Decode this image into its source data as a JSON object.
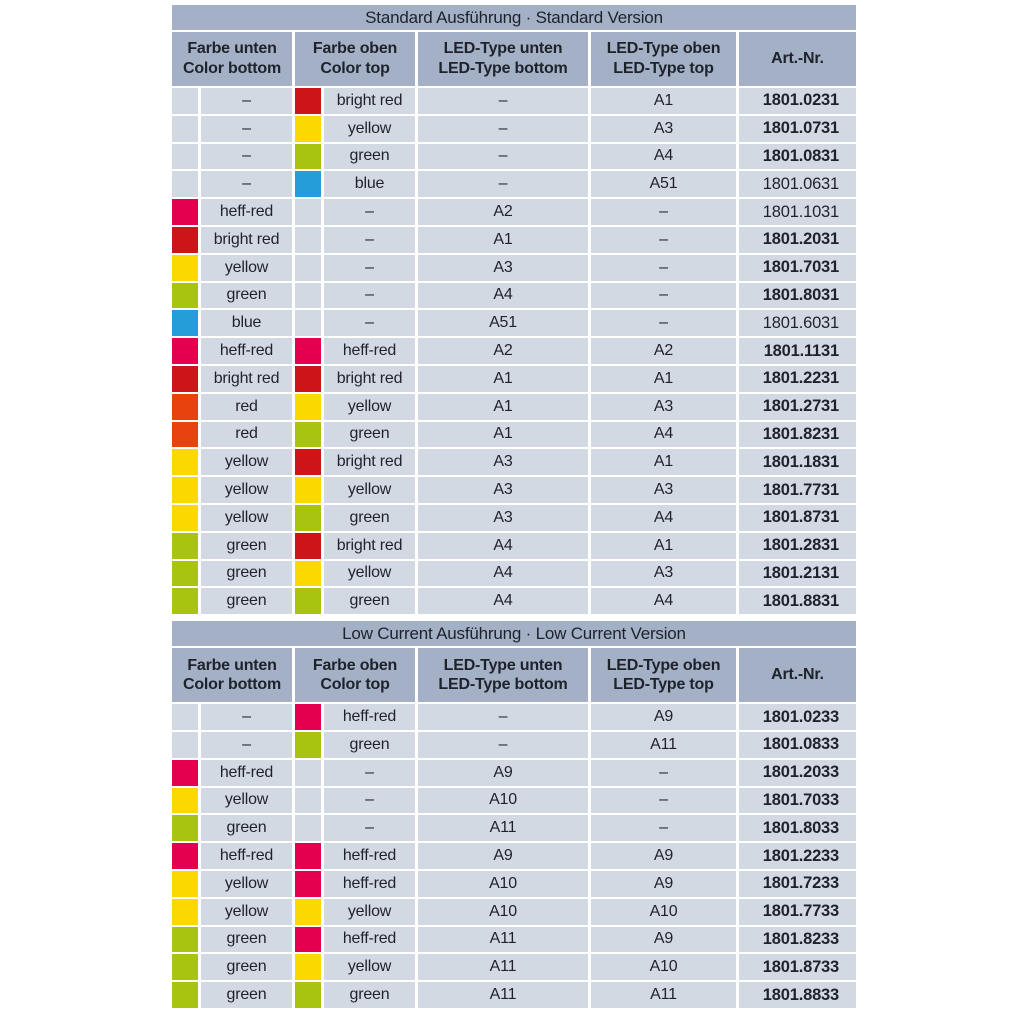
{
  "dash": "–",
  "colors": {
    "band": "#a3b0c5",
    "cell": "#d3d9e2",
    "text": "#1e222b",
    "swatches": {
      "heff-red": "#e4004f",
      "bright red": "#cd1519",
      "red": "#e8420e",
      "yellow": "#fbd900",
      "green": "#a9c40e",
      "blue": "#259dd6"
    }
  },
  "columns": [
    {
      "de": "Farbe unten",
      "en": "Color bottom"
    },
    {
      "de": "Farbe oben",
      "en": "Color top"
    },
    {
      "de": "LED-Type unten",
      "en": "LED-Type bottom"
    },
    {
      "de": "LED-Type oben",
      "en": "LED-Type top"
    },
    {
      "de": "Art.-Nr.",
      "en": ""
    }
  ],
  "sections": [
    {
      "title": "Standard Ausführung · Standard Version",
      "rows": [
        {
          "color_bottom": null,
          "color_top": "bright red",
          "led_bottom": null,
          "led_top": "A1",
          "art_nr": "1801.0231",
          "bold": true
        },
        {
          "color_bottom": null,
          "color_top": "yellow",
          "led_bottom": null,
          "led_top": "A3",
          "art_nr": "1801.0731",
          "bold": true
        },
        {
          "color_bottom": null,
          "color_top": "green",
          "led_bottom": null,
          "led_top": "A4",
          "art_nr": "1801.0831",
          "bold": true
        },
        {
          "color_bottom": null,
          "color_top": "blue",
          "led_bottom": null,
          "led_top": "A51",
          "art_nr": "1801.0631",
          "bold": false
        },
        {
          "color_bottom": "heff-red",
          "color_top": null,
          "led_bottom": "A2",
          "led_top": null,
          "art_nr": "1801.1031",
          "bold": false
        },
        {
          "color_bottom": "bright red",
          "color_top": null,
          "led_bottom": "A1",
          "led_top": null,
          "art_nr": "1801.2031",
          "bold": true
        },
        {
          "color_bottom": "yellow",
          "color_top": null,
          "led_bottom": "A3",
          "led_top": null,
          "art_nr": "1801.7031",
          "bold": true
        },
        {
          "color_bottom": "green",
          "color_top": null,
          "led_bottom": "A4",
          "led_top": null,
          "art_nr": "1801.8031",
          "bold": true
        },
        {
          "color_bottom": "blue",
          "color_top": null,
          "led_bottom": "A51",
          "led_top": null,
          "art_nr": "1801.6031",
          "bold": false
        },
        {
          "color_bottom": "heff-red",
          "color_top": "heff-red",
          "led_bottom": "A2",
          "led_top": "A2",
          "art_nr": "1801.1131",
          "bold": true
        },
        {
          "color_bottom": "bright red",
          "color_top": "bright red",
          "led_bottom": "A1",
          "led_top": "A1",
          "art_nr": "1801.2231",
          "bold": true
        },
        {
          "color_bottom": "red",
          "color_top": "yellow",
          "led_bottom": "A1",
          "led_top": "A3",
          "art_nr": "1801.2731",
          "bold": true
        },
        {
          "color_bottom": "red",
          "color_top": "green",
          "led_bottom": "A1",
          "led_top": "A4",
          "art_nr": "1801.8231",
          "bold": true
        },
        {
          "color_bottom": "yellow",
          "color_top": "bright red",
          "led_bottom": "A3",
          "led_top": "A1",
          "art_nr": "1801.1831",
          "bold": true
        },
        {
          "color_bottom": "yellow",
          "color_top": "yellow",
          "led_bottom": "A3",
          "led_top": "A3",
          "art_nr": "1801.7731",
          "bold": true
        },
        {
          "color_bottom": "yellow",
          "color_top": "green",
          "led_bottom": "A3",
          "led_top": "A4",
          "art_nr": "1801.8731",
          "bold": true
        },
        {
          "color_bottom": "green",
          "color_top": "bright red",
          "led_bottom": "A4",
          "led_top": "A1",
          "art_nr": "1801.2831",
          "bold": true
        },
        {
          "color_bottom": "green",
          "color_top": "yellow",
          "led_bottom": "A4",
          "led_top": "A3",
          "art_nr": "1801.2131",
          "bold": true
        },
        {
          "color_bottom": "green",
          "color_top": "green",
          "led_bottom": "A4",
          "led_top": "A4",
          "art_nr": "1801.8831",
          "bold": true
        }
      ]
    },
    {
      "title": "Low Current Ausführung · Low Current Version",
      "rows": [
        {
          "color_bottom": null,
          "color_top": "heff-red",
          "led_bottom": null,
          "led_top": "A9",
          "art_nr": "1801.0233",
          "bold": true
        },
        {
          "color_bottom": null,
          "color_top": "green",
          "led_bottom": null,
          "led_top": "A11",
          "art_nr": "1801.0833",
          "bold": true
        },
        {
          "color_bottom": "heff-red",
          "color_top": null,
          "led_bottom": "A9",
          "led_top": null,
          "art_nr": "1801.2033",
          "bold": true
        },
        {
          "color_bottom": "yellow",
          "color_top": null,
          "led_bottom": "A10",
          "led_top": null,
          "art_nr": "1801.7033",
          "bold": true
        },
        {
          "color_bottom": "green",
          "color_top": null,
          "led_bottom": "A11",
          "led_top": null,
          "art_nr": "1801.8033",
          "bold": true
        },
        {
          "color_bottom": "heff-red",
          "color_top": "heff-red",
          "led_bottom": "A9",
          "led_top": "A9",
          "art_nr": "1801.2233",
          "bold": true
        },
        {
          "color_bottom": "yellow",
          "color_top": "heff-red",
          "led_bottom": "A10",
          "led_top": "A9",
          "art_nr": "1801.7233",
          "bold": true
        },
        {
          "color_bottom": "yellow",
          "color_top": "yellow",
          "led_bottom": "A10",
          "led_top": "A10",
          "art_nr": "1801.7733",
          "bold": true
        },
        {
          "color_bottom": "green",
          "color_top": "heff-red",
          "led_bottom": "A11",
          "led_top": "A9",
          "art_nr": "1801.8233",
          "bold": true
        },
        {
          "color_bottom": "green",
          "color_top": "yellow",
          "led_bottom": "A11",
          "led_top": "A10",
          "art_nr": "1801.8733",
          "bold": true
        },
        {
          "color_bottom": "green",
          "color_top": "green",
          "led_bottom": "A11",
          "led_top": "A11",
          "art_nr": "1801.8833",
          "bold": true
        }
      ]
    }
  ]
}
